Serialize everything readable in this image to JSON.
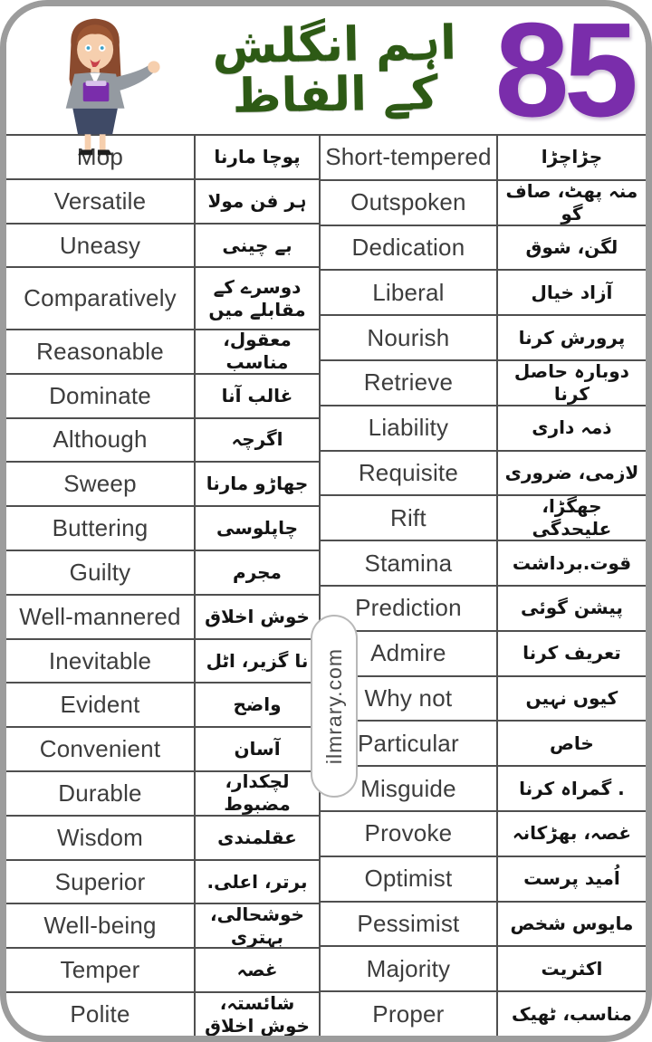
{
  "header": {
    "count": "85",
    "title_urdu": "اہم انگلش کے الفاظ",
    "count_color": "#7a2dab",
    "title_color": "#2d5a15",
    "teacher_icon": "teacher-illustration"
  },
  "watermark": {
    "text": "ilmrary.com"
  },
  "colors": {
    "frame_border": "#9c9c9c",
    "table_lines": "#4f4f4f",
    "english_text": "#3d3d3d",
    "urdu_text": "#141414"
  },
  "vocab_table": {
    "left": {
      "rows": [
        {
          "english": "Mop",
          "urdu": "پوچا مارنا"
        },
        {
          "english": "Versatile",
          "urdu": "ہر فن مولا"
        },
        {
          "english": "Uneasy",
          "urdu": "بے چینی"
        },
        {
          "english": "Comparatively",
          "urdu": "دوسرے کے\nمقابلے میں"
        },
        {
          "english": "Reasonable",
          "urdu": "معقول، مناسب"
        },
        {
          "english": "Dominate",
          "urdu": "غالب آنا"
        },
        {
          "english": "Although",
          "urdu": "اگرچہ"
        },
        {
          "english": "Sweep",
          "urdu": "جھاڑو مارنا"
        },
        {
          "english": "Buttering",
          "urdu": "چاپلوسی"
        },
        {
          "english": "Guilty",
          "urdu": "مجرم"
        },
        {
          "english": "Well-mannered",
          "urdu": "خوش اخلاق"
        },
        {
          "english": "Inevitable",
          "urdu": "نا گزیر، اٹل"
        },
        {
          "english": "Evident",
          "urdu": "واضح"
        },
        {
          "english": "Convenient",
          "urdu": "آسان"
        },
        {
          "english": "Durable",
          "urdu": "لچکدار، مضبوط"
        },
        {
          "english": "Wisdom",
          "urdu": "عقلمندی"
        },
        {
          "english": "Superior",
          "urdu": "برتر، اعلی."
        },
        {
          "english": "Well-being",
          "urdu": "خوشحالی، بہتری"
        },
        {
          "english": "Temper",
          "urdu": "غصہ"
        },
        {
          "english": "Polite",
          "urdu": "شائستہ، خوش اخلاق"
        }
      ]
    },
    "right": {
      "rows": [
        {
          "english": "Short-tempered",
          "urdu": "چڑاچڑا"
        },
        {
          "english": "Outspoken",
          "urdu": "منہ پھٹ، صاف گو"
        },
        {
          "english": "Dedication",
          "urdu": "لگن، شوق"
        },
        {
          "english": "Liberal",
          "urdu": "آزاد خیال"
        },
        {
          "english": "Nourish",
          "urdu": "پرورش کرنا"
        },
        {
          "english": "Retrieve",
          "urdu": "دوبارہ حاصل کرنا"
        },
        {
          "english": "Liability",
          "urdu": "ذمہ داری"
        },
        {
          "english": "Requisite",
          "urdu": "لازمی، ضروری"
        },
        {
          "english": "Rift",
          "urdu": "جھگڑا، علیحدگی"
        },
        {
          "english": "Stamina",
          "urdu": "قوت.برداشت"
        },
        {
          "english": "Prediction",
          "urdu": "پیشن گوئی"
        },
        {
          "english": "Admire",
          "urdu": "تعریف کرنا"
        },
        {
          "english": "Why not",
          "urdu": "کیوں نہیں"
        },
        {
          "english": "Particular",
          "urdu": "خاص"
        },
        {
          "english": "Misguide",
          "urdu": ". گمراہ کرنا"
        },
        {
          "english": "Provoke",
          "urdu": "غصہ، بھڑکانہ"
        },
        {
          "english": "Optimist",
          "urdu": "اُمید پرست"
        },
        {
          "english": "Pessimist",
          "urdu": "مایوس شخص"
        },
        {
          "english": "Majority",
          "urdu": "اکثریت"
        },
        {
          "english": "Proper",
          "urdu": "مناسب، ٹھیک"
        }
      ]
    }
  }
}
